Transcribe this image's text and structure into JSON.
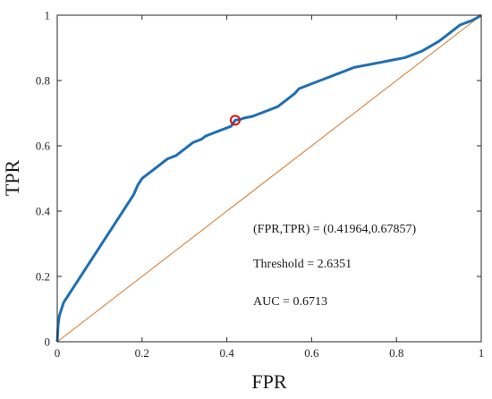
{
  "chart_data": {
    "type": "line",
    "xlabel": "FPR",
    "ylabel": "TPR",
    "xlim": [
      0,
      1
    ],
    "ylim": [
      0,
      1
    ],
    "xticks": [
      "0",
      "0.2",
      "0.4",
      "0.6",
      "0.8",
      "1"
    ],
    "yticks": [
      "0",
      "0.2",
      "0.4",
      "0.6",
      "0.8",
      "1"
    ],
    "grid": false,
    "series": [
      {
        "color": "#1f6fb4",
        "x": [
          0,
          0.002,
          0.005,
          0.01,
          0.015,
          0.02,
          0.03,
          0.04,
          0.05,
          0.06,
          0.07,
          0.08,
          0.09,
          0.1,
          0.11,
          0.12,
          0.13,
          0.14,
          0.15,
          0.16,
          0.17,
          0.18,
          0.19,
          0.2,
          0.21,
          0.22,
          0.23,
          0.24,
          0.25,
          0.26,
          0.27,
          0.28,
          0.29,
          0.3,
          0.31,
          0.32,
          0.33,
          0.34,
          0.35,
          0.36,
          0.37,
          0.38,
          0.39,
          0.4,
          0.41,
          0.41964,
          0.43,
          0.44,
          0.46,
          0.48,
          0.5,
          0.52,
          0.54,
          0.56,
          0.57,
          0.58,
          0.59,
          0.6,
          0.62,
          0.64,
          0.66,
          0.68,
          0.7,
          0.72,
          0.74,
          0.76,
          0.78,
          0.8,
          0.82,
          0.84,
          0.86,
          0.88,
          0.9,
          0.91,
          0.92,
          0.93,
          0.94,
          0.95,
          0.96,
          0.97,
          0.98,
          0.99,
          1.0
        ],
        "y": [
          0,
          0.05,
          0.08,
          0.1,
          0.12,
          0.13,
          0.15,
          0.17,
          0.19,
          0.21,
          0.23,
          0.25,
          0.27,
          0.29,
          0.31,
          0.33,
          0.35,
          0.37,
          0.39,
          0.41,
          0.43,
          0.45,
          0.48,
          0.5,
          0.51,
          0.52,
          0.53,
          0.54,
          0.55,
          0.56,
          0.565,
          0.57,
          0.58,
          0.59,
          0.6,
          0.61,
          0.615,
          0.62,
          0.63,
          0.635,
          0.64,
          0.645,
          0.65,
          0.655,
          0.66,
          0.67857,
          0.68,
          0.685,
          0.69,
          0.7,
          0.71,
          0.72,
          0.74,
          0.76,
          0.775,
          0.78,
          0.785,
          0.79,
          0.8,
          0.81,
          0.82,
          0.83,
          0.84,
          0.845,
          0.85,
          0.855,
          0.86,
          0.865,
          0.87,
          0.88,
          0.89,
          0.905,
          0.92,
          0.93,
          0.94,
          0.95,
          0.96,
          0.97,
          0.975,
          0.98,
          0.985,
          0.992,
          1.0
        ]
      },
      {
        "color": "#d4772a",
        "x": [
          0,
          1
        ],
        "y": [
          0,
          1
        ]
      }
    ],
    "marker": {
      "x": 0.41964,
      "y": 0.67857,
      "color": "#e01010"
    },
    "annotations": [
      "(FPR,TPR) = (0.41964,0.67857)",
      "Threshold = 2.6351",
      "AUC = 0.6713"
    ]
  }
}
